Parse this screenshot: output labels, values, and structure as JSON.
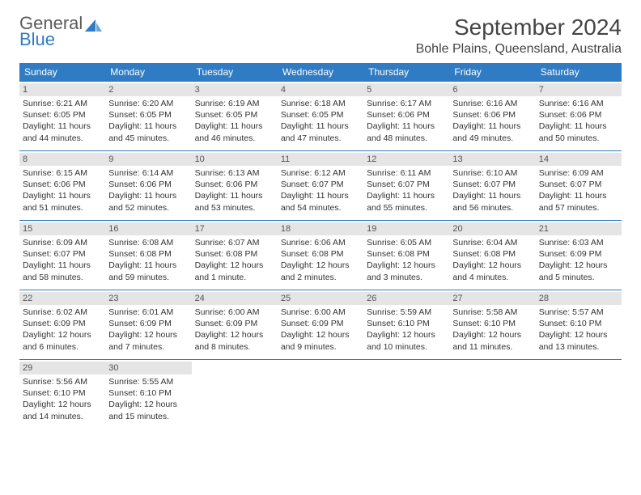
{
  "logo": {
    "word1": "General",
    "word2": "Blue"
  },
  "title": "September 2024",
  "location": "Bohle Plains, Queensland, Australia",
  "colors": {
    "accent": "#2f7bc4",
    "daynum_bg": "#e5e5e5",
    "text": "#333333",
    "background": "#ffffff"
  },
  "day_headers": [
    "Sunday",
    "Monday",
    "Tuesday",
    "Wednesday",
    "Thursday",
    "Friday",
    "Saturday"
  ],
  "days": [
    {
      "n": "1",
      "sunrise": "Sunrise: 6:21 AM",
      "sunset": "Sunset: 6:05 PM",
      "daylight": "Daylight: 11 hours and 44 minutes."
    },
    {
      "n": "2",
      "sunrise": "Sunrise: 6:20 AM",
      "sunset": "Sunset: 6:05 PM",
      "daylight": "Daylight: 11 hours and 45 minutes."
    },
    {
      "n": "3",
      "sunrise": "Sunrise: 6:19 AM",
      "sunset": "Sunset: 6:05 PM",
      "daylight": "Daylight: 11 hours and 46 minutes."
    },
    {
      "n": "4",
      "sunrise": "Sunrise: 6:18 AM",
      "sunset": "Sunset: 6:05 PM",
      "daylight": "Daylight: 11 hours and 47 minutes."
    },
    {
      "n": "5",
      "sunrise": "Sunrise: 6:17 AM",
      "sunset": "Sunset: 6:06 PM",
      "daylight": "Daylight: 11 hours and 48 minutes."
    },
    {
      "n": "6",
      "sunrise": "Sunrise: 6:16 AM",
      "sunset": "Sunset: 6:06 PM",
      "daylight": "Daylight: 11 hours and 49 minutes."
    },
    {
      "n": "7",
      "sunrise": "Sunrise: 6:16 AM",
      "sunset": "Sunset: 6:06 PM",
      "daylight": "Daylight: 11 hours and 50 minutes."
    },
    {
      "n": "8",
      "sunrise": "Sunrise: 6:15 AM",
      "sunset": "Sunset: 6:06 PM",
      "daylight": "Daylight: 11 hours and 51 minutes."
    },
    {
      "n": "9",
      "sunrise": "Sunrise: 6:14 AM",
      "sunset": "Sunset: 6:06 PM",
      "daylight": "Daylight: 11 hours and 52 minutes."
    },
    {
      "n": "10",
      "sunrise": "Sunrise: 6:13 AM",
      "sunset": "Sunset: 6:06 PM",
      "daylight": "Daylight: 11 hours and 53 minutes."
    },
    {
      "n": "11",
      "sunrise": "Sunrise: 6:12 AM",
      "sunset": "Sunset: 6:07 PM",
      "daylight": "Daylight: 11 hours and 54 minutes."
    },
    {
      "n": "12",
      "sunrise": "Sunrise: 6:11 AM",
      "sunset": "Sunset: 6:07 PM",
      "daylight": "Daylight: 11 hours and 55 minutes."
    },
    {
      "n": "13",
      "sunrise": "Sunrise: 6:10 AM",
      "sunset": "Sunset: 6:07 PM",
      "daylight": "Daylight: 11 hours and 56 minutes."
    },
    {
      "n": "14",
      "sunrise": "Sunrise: 6:09 AM",
      "sunset": "Sunset: 6:07 PM",
      "daylight": "Daylight: 11 hours and 57 minutes."
    },
    {
      "n": "15",
      "sunrise": "Sunrise: 6:09 AM",
      "sunset": "Sunset: 6:07 PM",
      "daylight": "Daylight: 11 hours and 58 minutes."
    },
    {
      "n": "16",
      "sunrise": "Sunrise: 6:08 AM",
      "sunset": "Sunset: 6:08 PM",
      "daylight": "Daylight: 11 hours and 59 minutes."
    },
    {
      "n": "17",
      "sunrise": "Sunrise: 6:07 AM",
      "sunset": "Sunset: 6:08 PM",
      "daylight": "Daylight: 12 hours and 1 minute."
    },
    {
      "n": "18",
      "sunrise": "Sunrise: 6:06 AM",
      "sunset": "Sunset: 6:08 PM",
      "daylight": "Daylight: 12 hours and 2 minutes."
    },
    {
      "n": "19",
      "sunrise": "Sunrise: 6:05 AM",
      "sunset": "Sunset: 6:08 PM",
      "daylight": "Daylight: 12 hours and 3 minutes."
    },
    {
      "n": "20",
      "sunrise": "Sunrise: 6:04 AM",
      "sunset": "Sunset: 6:08 PM",
      "daylight": "Daylight: 12 hours and 4 minutes."
    },
    {
      "n": "21",
      "sunrise": "Sunrise: 6:03 AM",
      "sunset": "Sunset: 6:09 PM",
      "daylight": "Daylight: 12 hours and 5 minutes."
    },
    {
      "n": "22",
      "sunrise": "Sunrise: 6:02 AM",
      "sunset": "Sunset: 6:09 PM",
      "daylight": "Daylight: 12 hours and 6 minutes."
    },
    {
      "n": "23",
      "sunrise": "Sunrise: 6:01 AM",
      "sunset": "Sunset: 6:09 PM",
      "daylight": "Daylight: 12 hours and 7 minutes."
    },
    {
      "n": "24",
      "sunrise": "Sunrise: 6:00 AM",
      "sunset": "Sunset: 6:09 PM",
      "daylight": "Daylight: 12 hours and 8 minutes."
    },
    {
      "n": "25",
      "sunrise": "Sunrise: 6:00 AM",
      "sunset": "Sunset: 6:09 PM",
      "daylight": "Daylight: 12 hours and 9 minutes."
    },
    {
      "n": "26",
      "sunrise": "Sunrise: 5:59 AM",
      "sunset": "Sunset: 6:10 PM",
      "daylight": "Daylight: 12 hours and 10 minutes."
    },
    {
      "n": "27",
      "sunrise": "Sunrise: 5:58 AM",
      "sunset": "Sunset: 6:10 PM",
      "daylight": "Daylight: 12 hours and 11 minutes."
    },
    {
      "n": "28",
      "sunrise": "Sunrise: 5:57 AM",
      "sunset": "Sunset: 6:10 PM",
      "daylight": "Daylight: 12 hours and 13 minutes."
    },
    {
      "n": "29",
      "sunrise": "Sunrise: 5:56 AM",
      "sunset": "Sunset: 6:10 PM",
      "daylight": "Daylight: 12 hours and 14 minutes."
    },
    {
      "n": "30",
      "sunrise": "Sunrise: 5:55 AM",
      "sunset": "Sunset: 6:10 PM",
      "daylight": "Daylight: 12 hours and 15 minutes."
    }
  ]
}
